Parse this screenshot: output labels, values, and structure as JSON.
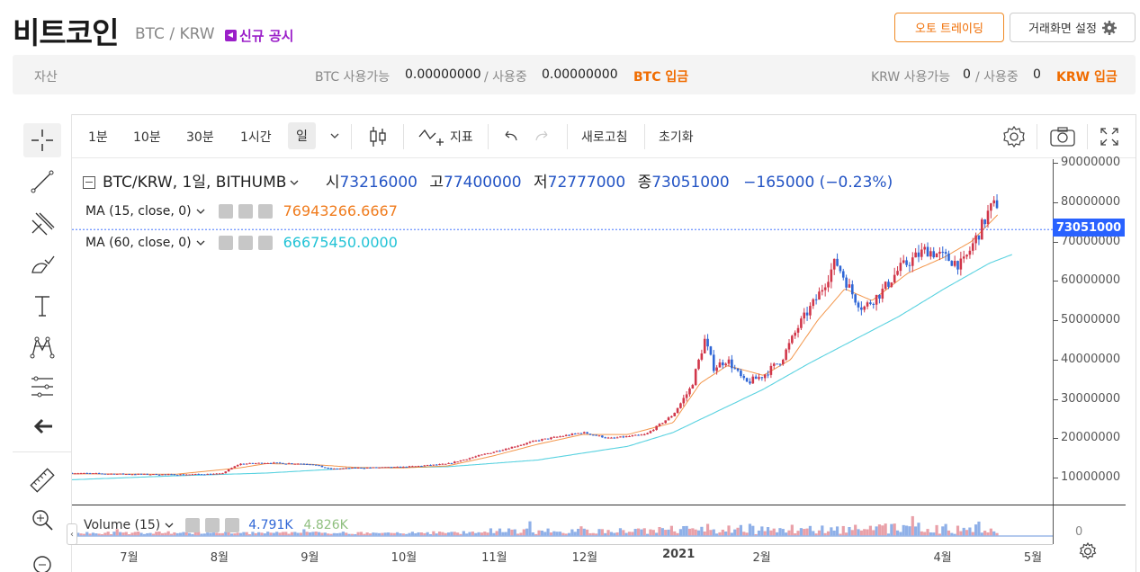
{
  "header": {
    "coin_name": "비트코인",
    "pair": "BTC / KRW",
    "notice": "신규 공시",
    "auto_trading": "오토 트레이딩",
    "screen_settings": "거래화면 설정"
  },
  "assets": {
    "label": "자산",
    "btc_available_label": "BTC 사용가능",
    "btc_available": "0.00000000",
    "btc_in_use_label": "/ 사용중",
    "btc_in_use": "0.00000000",
    "btc_deposit": "BTC 입금",
    "krw_available_label": "KRW 사용가능",
    "krw_available": "0",
    "krw_in_use_label": "/ 사용중",
    "krw_in_use": "0",
    "krw_deposit": "KRW 입금"
  },
  "toolbar": {
    "intervals": [
      "1분",
      "10분",
      "30분",
      "1시간",
      "일"
    ],
    "indicators": "지표",
    "refresh": "새로고침",
    "reset": "초기화"
  },
  "legend": {
    "symbol": "BTC/KRW, 1일, BITHUMB",
    "open_label": "시",
    "open": "73216000",
    "high_label": "고",
    "high": "77400000",
    "low_label": "저",
    "low": "72777000",
    "close_label": "종",
    "close": "73051000",
    "change": "−165000 (−0.23%)"
  },
  "ma15": {
    "label": "MA (15, close, 0)",
    "value": "76943266.6667",
    "color": "#f07c1e"
  },
  "ma60": {
    "label": "MA (60, close, 0)",
    "value": "66675450.0000",
    "color": "#22c3d6"
  },
  "volume": {
    "label": "Volume (15)",
    "value1": "4.791K",
    "value2": "4.826K"
  },
  "price_tag": "73051000",
  "colors": {
    "up": "#d1374a",
    "down": "#2f66d6",
    "accent": "#f06c00"
  },
  "chart_data": {
    "type": "line",
    "y_ticks": [
      10000000,
      20000000,
      30000000,
      40000000,
      50000000,
      60000000,
      70000000,
      80000000,
      90000000
    ],
    "y_tick_labels": [
      "10000000",
      "20000000",
      "30000000",
      "40000000",
      "50000000",
      "60000000",
      "70000000",
      "80000000",
      "90000000"
    ],
    "ylim": [
      0,
      90000000
    ],
    "x_tick_labels": [
      "7월",
      "8월",
      "9월",
      "10월",
      "11월",
      "12월",
      "2021",
      "2월",
      "4월",
      "5월"
    ],
    "x_tick_months": [
      1,
      2,
      3,
      4,
      5,
      6,
      7,
      8,
      10,
      11
    ],
    "month_range": [
      0.35,
      11.2
    ],
    "close_series": {
      "months": [
        0.35,
        0.8,
        1.5,
        2.0,
        2.2,
        2.5,
        3.0,
        3.2,
        3.5,
        4.0,
        4.5,
        5.0,
        5.5,
        6.0,
        6.3,
        6.7,
        7.0,
        7.2,
        7.35,
        7.45,
        7.6,
        7.8,
        8.0,
        8.2,
        8.4,
        8.6,
        8.8,
        9.0,
        9.1,
        9.3,
        9.5,
        9.8,
        10.0,
        10.2,
        10.4,
        10.5,
        10.6
      ],
      "values": [
        11200000,
        11000000,
        10800000,
        11000000,
        13500000,
        13800000,
        13500000,
        12200000,
        12500000,
        12700000,
        13500000,
        16500000,
        19500000,
        21500000,
        20000000,
        21000000,
        26000000,
        33000000,
        45000000,
        38000000,
        40000000,
        34000000,
        36000000,
        40000000,
        49000000,
        56000000,
        65000000,
        56000000,
        53000000,
        57000000,
        63000000,
        68000000,
        66000000,
        64000000,
        73000000,
        78000000,
        80000000
      ]
    },
    "ma15_series": {
      "months": [
        0.35,
        1.5,
        2.2,
        2.5,
        3.0,
        3.5,
        4.0,
        4.5,
        5.0,
        5.5,
        6.0,
        6.5,
        7.0,
        7.3,
        7.6,
        8.0,
        8.3,
        8.6,
        8.9,
        9.2,
        9.6,
        10.0,
        10.3,
        10.6
      ],
      "values": [
        11000000,
        10900000,
        12500000,
        13600000,
        13400000,
        12600000,
        12500000,
        13000000,
        15500000,
        18500000,
        21000000,
        21000000,
        24000000,
        34000000,
        38500000,
        36000000,
        40000000,
        50000000,
        58000000,
        55000000,
        62000000,
        66000000,
        70000000,
        77000000
      ]
    },
    "ma60_series": {
      "months": [
        0.35,
        1.5,
        2.5,
        3.5,
        4.5,
        5.5,
        6.5,
        7.0,
        7.5,
        8.0,
        8.5,
        9.0,
        9.5,
        10.0,
        10.5,
        10.75
      ],
      "values": [
        9500000,
        10500000,
        11200000,
        12500000,
        12800000,
        14500000,
        18000000,
        21500000,
        27000000,
        32500000,
        39000000,
        45000000,
        51000000,
        58000000,
        64500000,
        66700000
      ]
    }
  }
}
